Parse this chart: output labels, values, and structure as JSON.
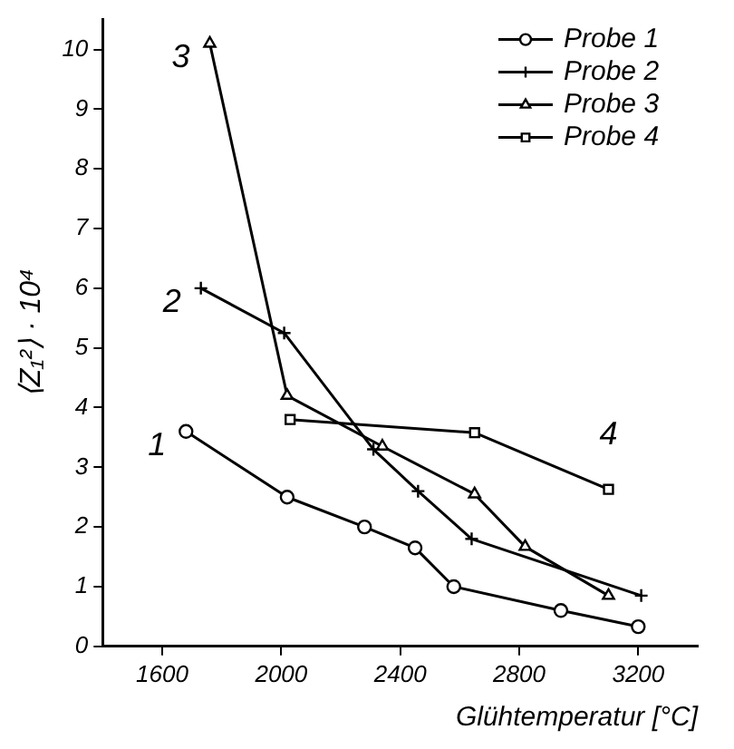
{
  "chart_data": {
    "type": "line",
    "xlabel": "Glühtemperatur [°C]",
    "ylabel": "⟨Z₁²⟩ · 10⁴",
    "xlim": [
      1400,
      3400
    ],
    "xticks": [
      1600,
      2000,
      2400,
      2800,
      3200
    ],
    "ylim": [
      0,
      10.5
    ],
    "yticks": [
      0,
      1,
      2,
      3,
      4,
      5,
      6,
      7,
      8,
      9,
      10
    ],
    "grid": false,
    "legend": "top right",
    "series": [
      {
        "name": "Probe 1",
        "color": "#000000",
        "marker": "circle",
        "x": [
          1680,
          2020,
          2280,
          2450,
          2580,
          2940,
          3200
        ],
        "values": [
          3.6,
          2.5,
          2.0,
          1.65,
          1.0,
          0.6,
          0.33
        ]
      },
      {
        "name": "Probe 2",
        "color": "#000000",
        "marker": "cross",
        "x": [
          1730,
          2010,
          2310,
          2460,
          2640,
          3210
        ],
        "values": [
          6.0,
          5.25,
          3.3,
          2.6,
          1.8,
          0.85
        ]
      },
      {
        "name": "Probe 3",
        "color": "#000000",
        "marker": "triangle",
        "x": [
          1760,
          2020,
          2340,
          2650,
          2820,
          3100
        ],
        "values": [
          10.1,
          4.2,
          3.35,
          2.55,
          1.67,
          0.85
        ]
      },
      {
        "name": "Probe 4",
        "color": "#000000",
        "marker": "square",
        "x": [
          2030,
          2650,
          3100
        ],
        "values": [
          3.8,
          3.58,
          2.63
        ]
      }
    ],
    "annotations": [
      "1",
      "2",
      "3",
      "4"
    ]
  }
}
